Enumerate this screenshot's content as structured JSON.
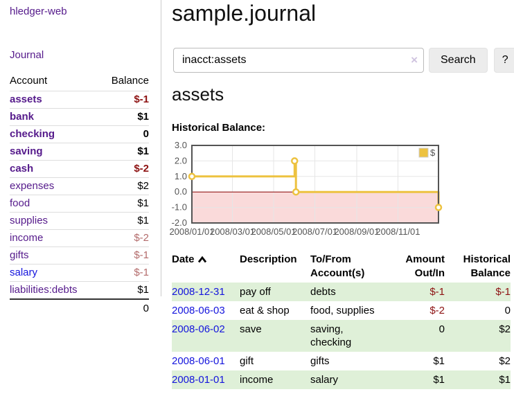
{
  "app": {
    "brand": "hledger-web",
    "nav_journal": "Journal"
  },
  "colors": {
    "link_purple": "#551a8b",
    "link_blue": "#1414dd",
    "negative_strong": "#8d1212",
    "negative_dim": "#b36b6b",
    "row_stripe_green": "#dff0d8",
    "chart_line_gold": "#edc240",
    "chart_negative_region": "#fadada",
    "chart_zero_line": "#8b0000",
    "chart_border": "#545454"
  },
  "sidebar": {
    "header": {
      "account": "Account",
      "balance": "Balance"
    },
    "accounts": [
      {
        "name": "assets",
        "depth": 1,
        "balance": "$-1",
        "bold": true,
        "negative": "strong"
      },
      {
        "name": "bank",
        "depth": 2,
        "balance": "$1",
        "bold": true
      },
      {
        "name": "checking",
        "depth": 3,
        "balance": "0",
        "bold": true
      },
      {
        "name": "saving",
        "depth": 3,
        "balance": "$1",
        "bold": true
      },
      {
        "name": "cash",
        "depth": 2,
        "balance": "$-2",
        "bold": true,
        "negative": "strong"
      },
      {
        "name": "expenses",
        "depth": 1,
        "balance": "$2"
      },
      {
        "name": "food",
        "depth": 2,
        "balance": "$1"
      },
      {
        "name": "supplies",
        "depth": 2,
        "balance": "$1"
      },
      {
        "name": "income",
        "depth": 1,
        "balance": "$-2",
        "negative": "dim"
      },
      {
        "name": "gifts",
        "depth": 2,
        "balance": "$-1",
        "negative": "dim"
      },
      {
        "name": "salary",
        "depth": 2,
        "balance": "$-1",
        "negative": "dim",
        "unvisited": true
      },
      {
        "name": "liabilities:debts",
        "depth": 1,
        "balance": "$1"
      }
    ],
    "total": "0"
  },
  "main": {
    "title": "sample.journal",
    "search": {
      "value": "inacct:assets",
      "clear_icon": "×",
      "button": "Search",
      "help_button": "?"
    },
    "account_heading": "assets",
    "chart_label": "Historical Balance:"
  },
  "chart_data": {
    "type": "line",
    "title": "Historical Balance:",
    "step": true,
    "ylim": [
      -2,
      3
    ],
    "y_ticks": [
      3.0,
      2.0,
      1.0,
      0.0,
      -1.0,
      -2.0
    ],
    "x_ticks": [
      "2008/01/01",
      "2008/03/01",
      "2008/05/01",
      "2008/07/01",
      "2008/09/01",
      "2008/11/01"
    ],
    "x_range": [
      "2008-01-01",
      "2008-12-31"
    ],
    "series": [
      {
        "name": "$",
        "color": "#edc240",
        "points": [
          [
            "2008-01-01",
            1
          ],
          [
            "2008-06-01",
            2
          ],
          [
            "2008-06-03",
            0
          ],
          [
            "2008-12-31",
            -1
          ]
        ]
      }
    ],
    "legend": {
      "label": "$",
      "position": "top-right"
    },
    "grid": true,
    "negative_region_color": "#fadada",
    "zero_line_color": "#8b0000",
    "border_color": "#545454",
    "tick_label_color": "#545454"
  },
  "register": {
    "header": {
      "date": "Date",
      "sort_icon": "chevron-up",
      "description": "Description",
      "accounts_l1": "To/From",
      "accounts_l2": "Account(s)",
      "amount_l1": "Amount",
      "amount_l2": "Out/In",
      "balance_l1": "Historical",
      "balance_l2": "Balance"
    },
    "rows": [
      {
        "date": "2008-12-31",
        "description": "pay off",
        "accounts": "debts",
        "amount": "$-1",
        "balance": "$-1"
      },
      {
        "date": "2008-06-03",
        "description": "eat & shop",
        "accounts": "food, supplies",
        "amount": "$-2",
        "balance": "0"
      },
      {
        "date": "2008-06-02",
        "description": "save",
        "accounts": "saving, checking",
        "amount": "0",
        "balance": "$2"
      },
      {
        "date": "2008-06-01",
        "description": "gift",
        "accounts": "gifts",
        "amount": "$1",
        "balance": "$2"
      },
      {
        "date": "2008-01-01",
        "description": "income",
        "accounts": "salary",
        "amount": "$1",
        "balance": "$1"
      }
    ]
  }
}
